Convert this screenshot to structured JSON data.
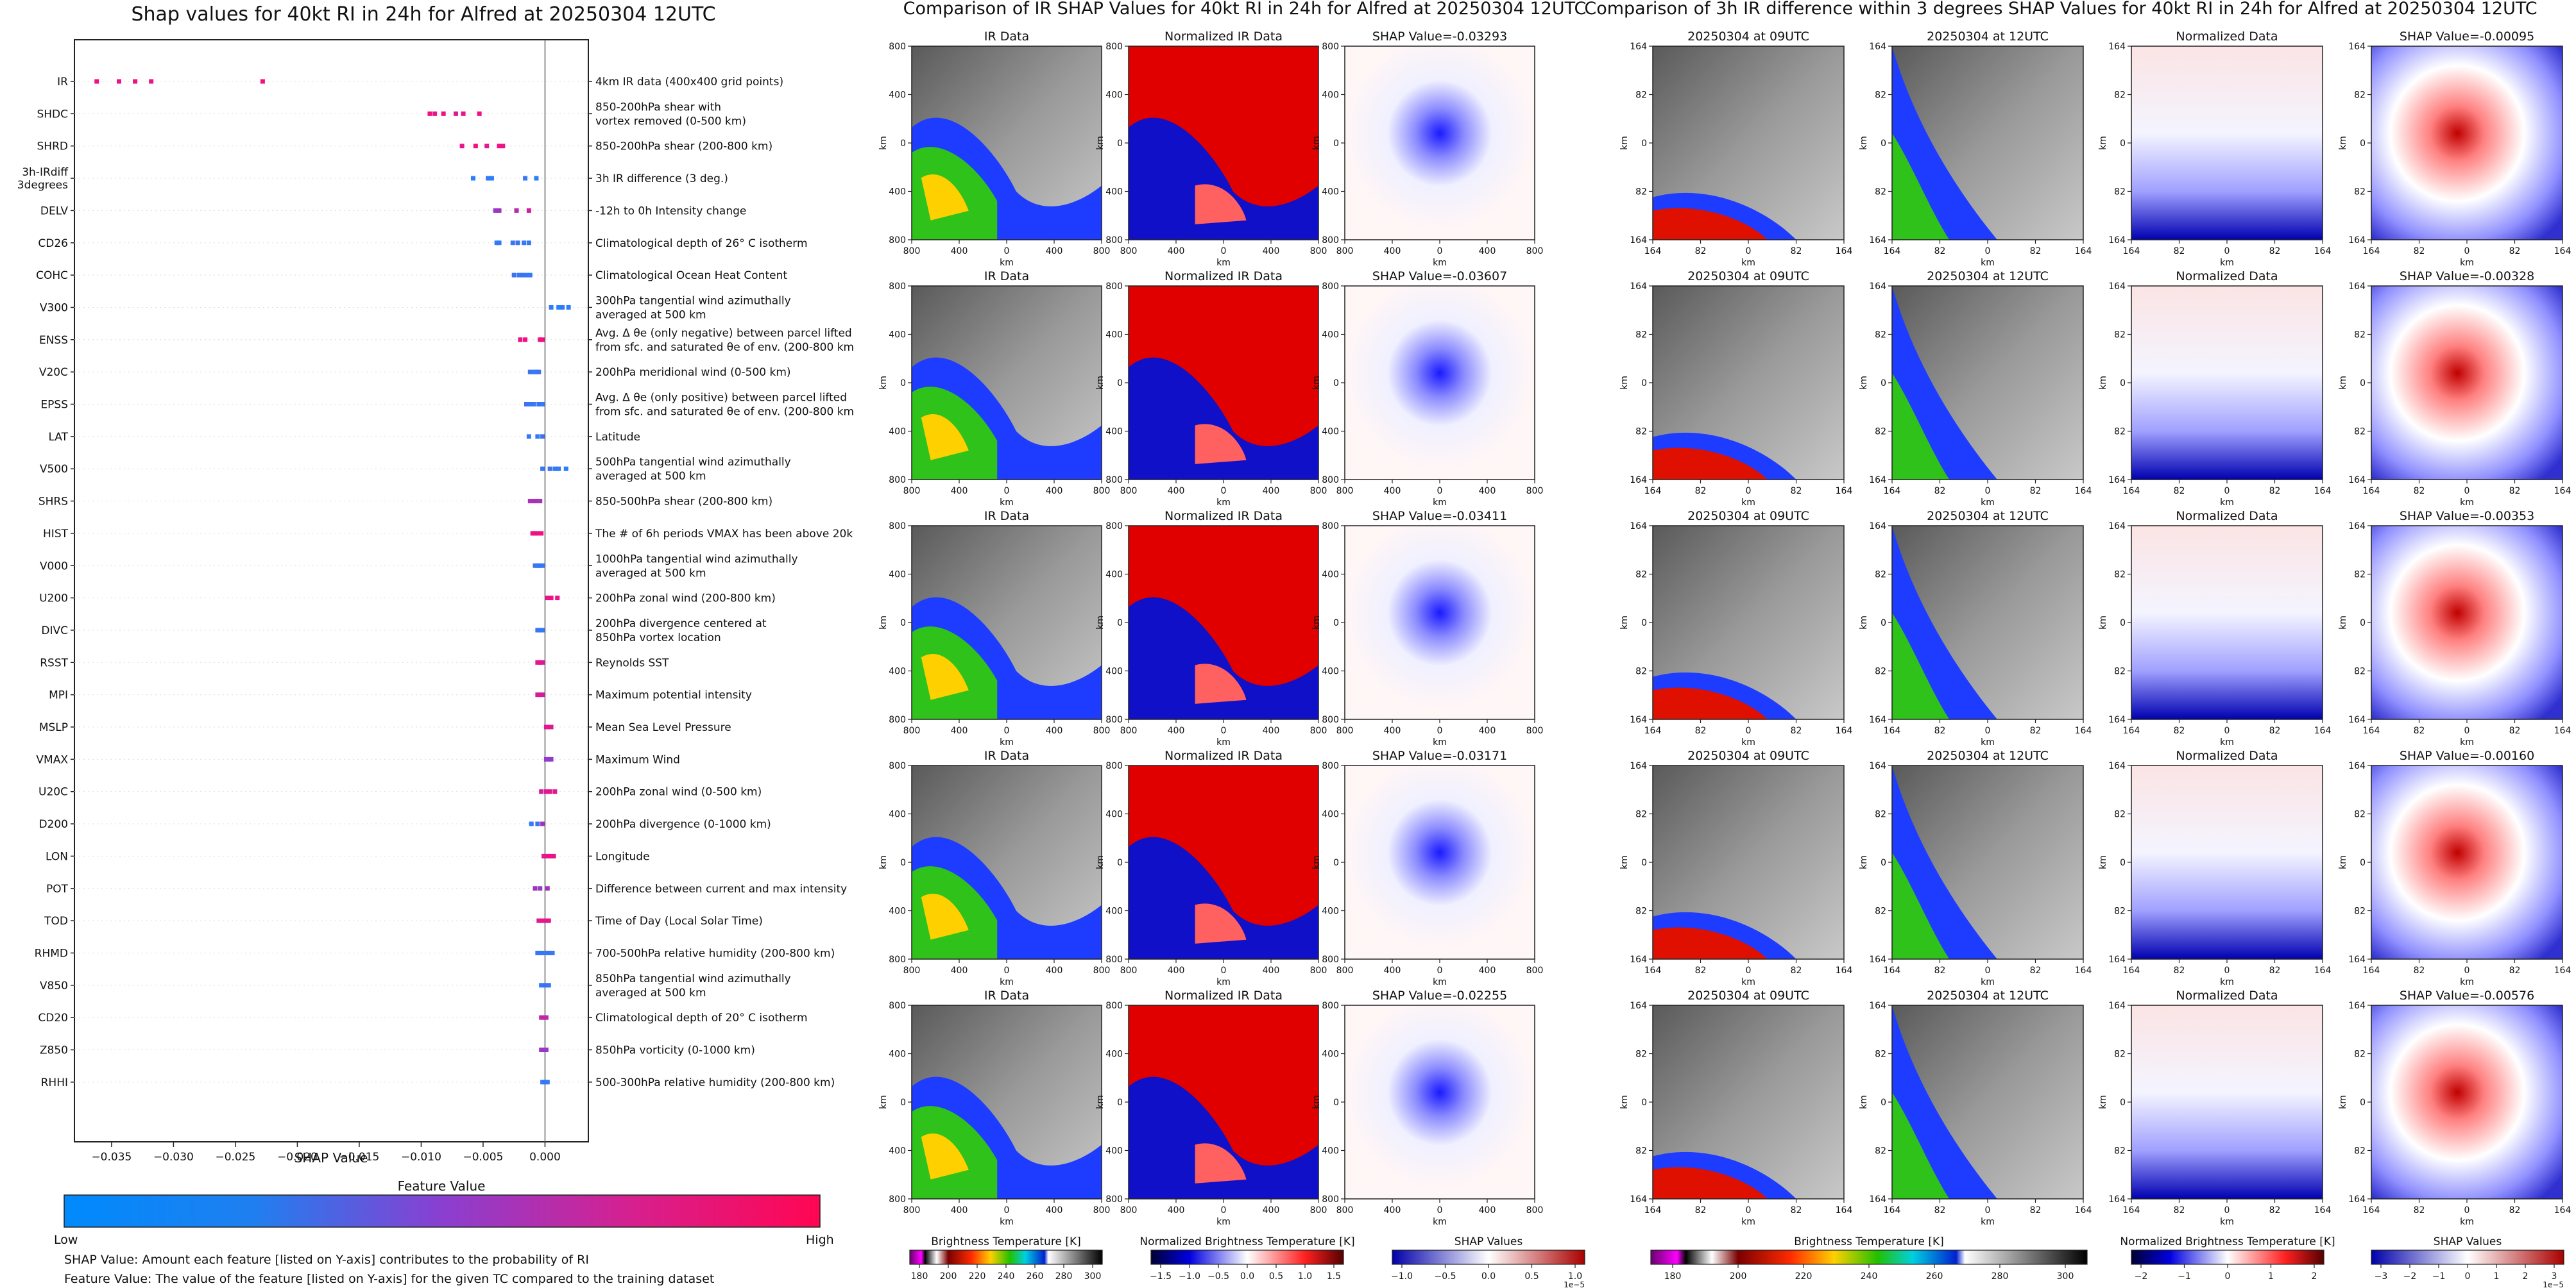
{
  "left_chart": {
    "title": "Shap values for 40kt RI in 24h for Alfred at 20250304 12UTC",
    "xlabel": "SHAP Value",
    "colorbar_title": "Feature Value",
    "colorbar_low": "Low",
    "colorbar_high": "High",
    "footnotes": [
      "SHAP Value: Amount each feature [listed on Y-axis] contributes to the probability of RI",
      "Feature Value: The value of the feature [listed on Y-axis] for the given TC compared to the training dataset"
    ]
  },
  "chart_data": [
    {
      "type": "scatter",
      "title": "Shap values for 40kt RI in 24h for Alfred at 20250304 12UTC",
      "xlabel": "SHAP Value",
      "xlim": [
        -0.038,
        0.0035
      ],
      "xticks": [
        -0.035,
        -0.03,
        -0.025,
        -0.02,
        -0.015,
        -0.01,
        -0.005,
        0.0
      ],
      "xtick_labels": [
        "−0.035",
        "−0.030",
        "−0.025",
        "−0.020",
        "−0.015",
        "−0.010",
        "−0.005",
        "0.000"
      ],
      "grid": false,
      "colorscale": [
        "#1e88ff",
        "#8a3fd0",
        "#ff0a78"
      ],
      "features": [
        {
          "name": "IR",
          "desc": "4km IR data (400x400 grid points)",
          "points": [
            [
              -0.0362,
              0.95
            ],
            [
              -0.0344,
              0.9
            ],
            [
              -0.0331,
              0.95
            ],
            [
              -0.0318,
              0.9
            ],
            [
              -0.0228,
              0.95
            ]
          ]
        },
        {
          "name": "SHDC",
          "desc": "850-200hPa shear with\nvortex removed (0-500 km)",
          "points": [
            [
              -0.0093,
              0.95
            ],
            [
              -0.0089,
              0.9
            ],
            [
              -0.0082,
              0.95
            ],
            [
              -0.0072,
              0.85
            ],
            [
              -0.0066,
              0.9
            ],
            [
              -0.0053,
              0.95
            ]
          ]
        },
        {
          "name": "SHRD",
          "desc": "850-200hPa shear (200-800 km)",
          "points": [
            [
              -0.0067,
              0.9
            ],
            [
              -0.0056,
              0.95
            ],
            [
              -0.0047,
              0.85
            ],
            [
              -0.0037,
              0.95
            ],
            [
              -0.0034,
              0.9
            ]
          ]
        },
        {
          "name": "3h-IRdiff\n3degrees",
          "desc": "3h IR difference (3 deg.)",
          "points": [
            [
              -0.0058,
              0.05
            ],
            [
              -0.0046,
              0.1
            ],
            [
              -0.0043,
              0.05
            ],
            [
              -0.0016,
              0.1
            ],
            [
              -0.0007,
              0.05
            ]
          ]
        },
        {
          "name": "DELV",
          "desc": "-12h to 0h Intensity change",
          "points": [
            [
              -0.004,
              0.55
            ],
            [
              -0.0037,
              0.6
            ],
            [
              -0.0023,
              0.7
            ],
            [
              -0.0013,
              0.8
            ]
          ]
        },
        {
          "name": "CD26",
          "desc": "Climatological depth of 26° C isotherm",
          "points": [
            [
              -0.0039,
              0.1
            ],
            [
              -0.0037,
              0.1
            ],
            [
              -0.0026,
              0.1
            ],
            [
              -0.0022,
              0.15
            ],
            [
              -0.0017,
              0.1
            ],
            [
              -0.0013,
              0.1
            ]
          ]
        },
        {
          "name": "COHC",
          "desc": "Climatological Ocean Heat Content",
          "points": [
            [
              -0.0025,
              0.15
            ],
            [
              -0.0021,
              0.1
            ],
            [
              -0.0018,
              0.15
            ],
            [
              -0.0015,
              0.1
            ],
            [
              -0.0012,
              0.1
            ]
          ]
        },
        {
          "name": "V300",
          "desc": "300hPa tangential wind azimuthally\naveraged at 500 km",
          "points": [
            [
              0.0005,
              0.1
            ],
            [
              0.0011,
              0.05
            ],
            [
              0.0014,
              0.1
            ],
            [
              0.0019,
              0.05
            ]
          ]
        },
        {
          "name": "ENSS",
          "desc": "Avg. Δ θe (only negative) between parcel lifted\nfrom sfc. and saturated θe of env. (200-800 km)",
          "points": [
            [
              -0.002,
              0.9
            ],
            [
              -0.0016,
              0.95
            ],
            [
              -0.0004,
              0.9
            ],
            [
              -0.0002,
              0.95
            ]
          ]
        },
        {
          "name": "V20C",
          "desc": "200hPa meridional wind (0-500 km)",
          "points": [
            [
              -0.0012,
              0.15
            ],
            [
              -0.0009,
              0.1
            ],
            [
              -0.0007,
              0.1
            ],
            [
              -0.0005,
              0.15
            ]
          ]
        },
        {
          "name": "EPSS",
          "desc": "Avg. Δ θe (only positive) between parcel lifted\nfrom sfc. and saturated θe of env. (200-800 km)",
          "points": [
            [
              -0.0015,
              0.15
            ],
            [
              -0.0012,
              0.1
            ],
            [
              -0.0009,
              0.1
            ],
            [
              -0.0005,
              0.15
            ],
            [
              -0.0002,
              0.1
            ]
          ]
        },
        {
          "name": "LAT",
          "desc": "Latitude",
          "points": [
            [
              -0.0013,
              0.1
            ],
            [
              -0.0006,
              0.1
            ],
            [
              -0.0002,
              0.15
            ]
          ]
        },
        {
          "name": "V500",
          "desc": "500hPa tangential wind azimuthally\naveraged at 500 km",
          "points": [
            [
              -0.0002,
              0.1
            ],
            [
              0.0004,
              0.15
            ],
            [
              0.0008,
              0.1
            ],
            [
              0.0011,
              0.1
            ],
            [
              0.0017,
              0.05
            ]
          ]
        },
        {
          "name": "SHRS",
          "desc": "850-500hPa shear (200-800 km)",
          "points": [
            [
              -0.0012,
              0.65
            ],
            [
              -0.0009,
              0.6
            ],
            [
              -0.0007,
              0.65
            ],
            [
              -0.0004,
              0.6
            ]
          ]
        },
        {
          "name": "HIST",
          "desc": "The # of 6h periods VMAX has been above 20kt",
          "points": [
            [
              -0.001,
              0.9
            ],
            [
              -0.0008,
              0.95
            ],
            [
              -0.0006,
              0.9
            ],
            [
              -0.0003,
              0.95
            ]
          ]
        },
        {
          "name": "V000",
          "desc": "1000hPa tangential wind azimuthally\naveraged at 500 km",
          "points": [
            [
              -0.0008,
              0.1
            ],
            [
              -0.0006,
              0.1
            ],
            [
              -0.0004,
              0.15
            ],
            [
              -0.0002,
              0.1
            ]
          ]
        },
        {
          "name": "U200",
          "desc": "200hPa zonal wind (200-800 km)",
          "points": [
            [
              0.0002,
              0.9
            ],
            [
              0.0005,
              0.95
            ],
            [
              0.001,
              0.9
            ]
          ]
        },
        {
          "name": "DIVC",
          "desc": "200hPa divergence centered at\n850hPa vortex location",
          "points": [
            [
              -0.0006,
              0.1
            ],
            [
              -0.0004,
              0.15
            ],
            [
              -0.0002,
              0.1
            ]
          ]
        },
        {
          "name": "RSST",
          "desc": "Reynolds SST",
          "points": [
            [
              -0.0006,
              0.85
            ],
            [
              -0.0004,
              0.9
            ],
            [
              -0.0002,
              0.85
            ]
          ]
        },
        {
          "name": "MPI",
          "desc": "Maximum potential intensity",
          "points": [
            [
              -0.0006,
              0.8
            ],
            [
              -0.0004,
              0.85
            ],
            [
              -0.0002,
              0.8
            ]
          ]
        },
        {
          "name": "MSLP",
          "desc": "Mean Sea Level Pressure",
          "points": [
            [
              0.0001,
              0.85
            ],
            [
              0.0003,
              0.9
            ],
            [
              0.0005,
              0.85
            ]
          ]
        },
        {
          "name": "VMAX",
          "desc": "Maximum Wind",
          "points": [
            [
              0.0001,
              0.5
            ],
            [
              0.0003,
              0.55
            ],
            [
              0.0005,
              0.5
            ]
          ]
        },
        {
          "name": "U20C",
          "desc": "200hPa zonal wind (0-500 km)",
          "points": [
            [
              -0.0003,
              0.8
            ],
            [
              0.0001,
              0.85
            ],
            [
              0.0004,
              0.9
            ],
            [
              0.0008,
              0.85
            ]
          ]
        },
        {
          "name": "D200",
          "desc": "200hPa divergence (0-1000 km)",
          "points": [
            [
              -0.0011,
              0.1
            ],
            [
              -0.0006,
              0.15
            ],
            [
              -0.0002,
              0.6
            ]
          ]
        },
        {
          "name": "LON",
          "desc": "Longitude",
          "points": [
            [
              -0.0001,
              0.85
            ],
            [
              0.0002,
              0.9
            ],
            [
              0.0004,
              0.95
            ],
            [
              0.0007,
              0.9
            ]
          ]
        },
        {
          "name": "POT",
          "desc": "Difference between current and max intensity",
          "points": [
            [
              -0.0008,
              0.6
            ],
            [
              -0.0004,
              0.55
            ],
            [
              0.0002,
              0.6
            ]
          ]
        },
        {
          "name": "TOD",
          "desc": "Time of Day (Local Solar Time)",
          "points": [
            [
              -0.0005,
              0.85
            ],
            [
              -0.0002,
              0.9
            ],
            [
              0.0001,
              0.85
            ],
            [
              0.0003,
              0.9
            ]
          ]
        },
        {
          "name": "RHMD",
          "desc": "700-500hPa relative humidity (200-800 km)",
          "points": [
            [
              -0.0006,
              0.1
            ],
            [
              -0.0003,
              0.15
            ],
            [
              0.0,
              0.1
            ],
            [
              0.0003,
              0.15
            ],
            [
              0.0006,
              0.1
            ]
          ]
        },
        {
          "name": "V850",
          "desc": "850hPa tangential wind azimuthally\naveraged at 500 km",
          "points": [
            [
              -0.0003,
              0.1
            ],
            [
              0.0,
              0.15
            ],
            [
              0.0003,
              0.1
            ]
          ]
        },
        {
          "name": "CD20",
          "desc": "Climatological depth of 20° C isotherm",
          "points": [
            [
              -0.0003,
              0.7
            ],
            [
              -0.0001,
              0.75
            ],
            [
              0.0001,
              0.7
            ]
          ]
        },
        {
          "name": "Z850",
          "desc": "850hPa vorticity (0-1000 km)",
          "points": [
            [
              -0.0003,
              0.55
            ],
            [
              -0.0001,
              0.6
            ],
            [
              0.0001,
              0.55
            ]
          ]
        },
        {
          "name": "RHHI",
          "desc": "500-300hPa relative humidity (200-800 km)",
          "points": [
            [
              -0.0002,
              0.1
            ],
            [
              0.0,
              0.15
            ],
            [
              0.0002,
              0.1
            ]
          ]
        }
      ]
    },
    {
      "type": "heatmap",
      "title": "Comparison of IR SHAP Values for 40kt RI in 24h for Alfred at 20250304 12UTC",
      "columns": [
        "IR Data",
        "Normalized IR Data",
        "SHAP Value"
      ],
      "shap_values": [
        "-0.03293",
        "-0.03607",
        "-0.03411",
        "-0.03171",
        "-0.02255"
      ],
      "axis_ticks": [
        "800",
        "400",
        "0",
        "400",
        "800"
      ],
      "axis_label": "km"
    },
    {
      "type": "heatmap",
      "title": "Comparison of 3h IR difference within 3 degrees SHAP Values for 40kt RI in 24h for Alfred at 20250304 12UTC",
      "columns": [
        "20250304 at 09UTC",
        "20250304 at 12UTC",
        "Normalized Data",
        "SHAP Value"
      ],
      "shap_values": [
        "-0.00095",
        "-0.00328",
        "-0.00353",
        "-0.00160",
        "-0.00576"
      ],
      "axis_ticks": [
        "164",
        "82",
        "0",
        "82",
        "164"
      ],
      "axis_label": "km"
    }
  ],
  "colorbars": {
    "brightness": {
      "label": "Brightness Temperature [K]",
      "ticks_ir": [
        "180",
        "200",
        "220",
        "240",
        "260",
        "280",
        "300"
      ],
      "ticks_3h": [
        "180",
        "200",
        "220",
        "240",
        "260",
        "280",
        "300"
      ]
    },
    "normalized": {
      "label": "Normalized Brightness Temperature [K]",
      "ticks_ir": [
        "−1.5",
        "−1.0",
        "−0.5",
        "0.0",
        "0.5",
        "1.0",
        "1.5"
      ],
      "ticks_3h": [
        "−2",
        "−1",
        "0",
        "1",
        "2"
      ]
    },
    "shap": {
      "label": "SHAP Values",
      "ticks_ir": [
        "−1.0",
        "−0.5",
        "0.0",
        "0.5",
        "1.0"
      ],
      "ticks_3h": [
        "−3",
        "−2",
        "−1",
        "0",
        "1",
        "2",
        "3"
      ],
      "exponent": "1e−5"
    }
  }
}
